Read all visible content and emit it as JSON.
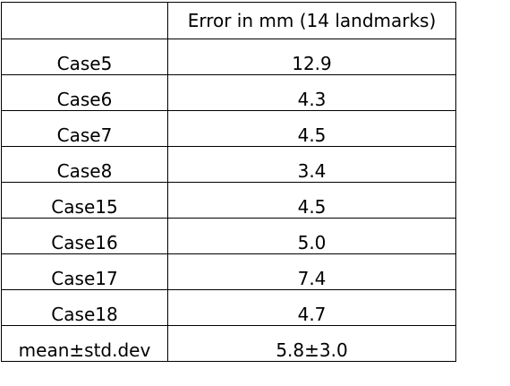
{
  "table": {
    "headers": [
      "",
      "Error in mm (14 landmarks)"
    ],
    "rows": [
      {
        "case": "Case5",
        "error": "12.9"
      },
      {
        "case": "Case6",
        "error": "4.3"
      },
      {
        "case": "Case7",
        "error": "4.5"
      },
      {
        "case": "Case8",
        "error": "3.4"
      },
      {
        "case": "Case15",
        "error": "4.5"
      },
      {
        "case": "Case16",
        "error": "5.0"
      },
      {
        "case": "Case17",
        "error": "7.4"
      },
      {
        "case": "Case18",
        "error": "4.7"
      },
      {
        "case": "mean±std.dev",
        "error": "5.8±3.0"
      }
    ]
  }
}
